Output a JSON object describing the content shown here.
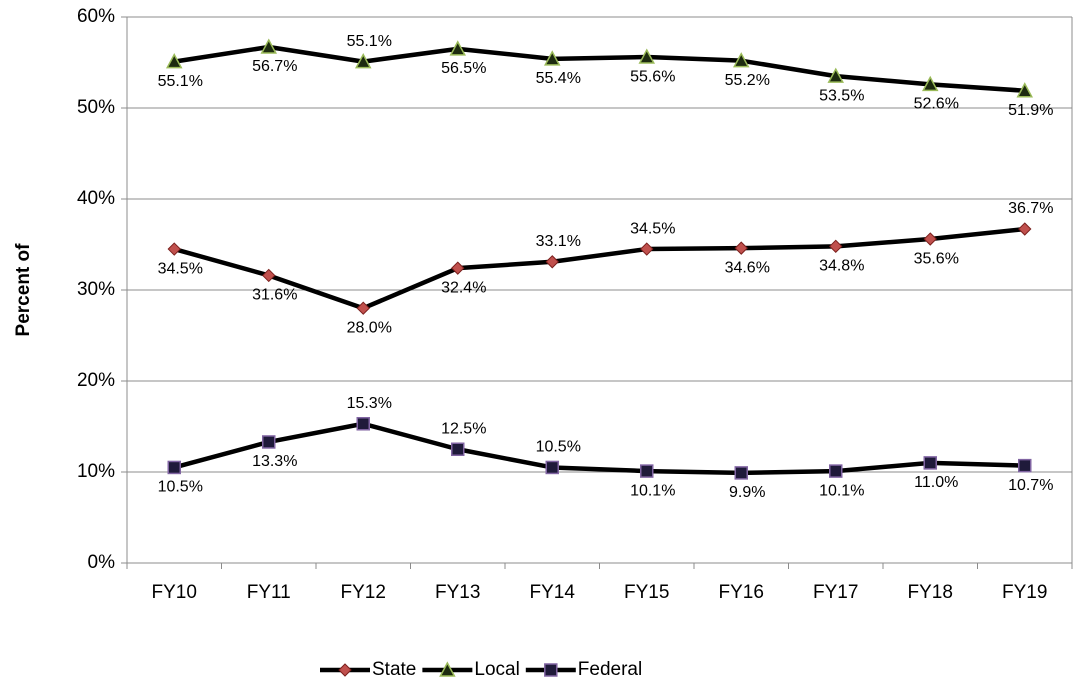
{
  "chart_data": {
    "type": "line",
    "y_label": "Percent of",
    "categories": [
      "FY10",
      "FY11",
      "FY12",
      "FY13",
      "FY14",
      "FY15",
      "FY16",
      "FY17",
      "FY18",
      "FY19"
    ],
    "series": [
      {
        "name": "State",
        "color": "#000000",
        "marker": "diamond",
        "marker_color": "#c0504d",
        "values": [
          34.5,
          31.6,
          28.0,
          32.4,
          33.1,
          34.5,
          34.6,
          34.8,
          35.6,
          36.7
        ],
        "value_labels": [
          "34.5%",
          "31.6%",
          "28.0%",
          "32.4%",
          "33.1%",
          "34.5%",
          "34.6%",
          "34.8%",
          "35.6%",
          "36.7%"
        ]
      },
      {
        "name": "Local",
        "color": "#000000",
        "marker": "triangle",
        "marker_color": "#9bbb59",
        "values": [
          55.1,
          56.7,
          55.1,
          56.5,
          55.4,
          55.6,
          55.2,
          53.5,
          52.6,
          51.9
        ],
        "value_labels": [
          "55.1%",
          "56.7%",
          "55.1%",
          "56.5%",
          "55.4%",
          "55.6%",
          "55.2%",
          "53.5%",
          "52.6%",
          "51.9%"
        ]
      },
      {
        "name": "Federal",
        "color": "#000000",
        "marker": "square",
        "marker_color": "#1f1a3a",
        "values": [
          10.5,
          13.3,
          15.3,
          12.5,
          10.5,
          10.1,
          9.9,
          10.1,
          11.0,
          10.7
        ],
        "value_labels": [
          "10.5%",
          "13.3%",
          "15.3%",
          "12.5%",
          "10.5%",
          "10.1%",
          "9.9%",
          "10.1%",
          "11.0%",
          "10.7%"
        ]
      }
    ],
    "ylim": [
      0,
      60
    ],
    "yticks": [
      {
        "value": 0,
        "label": "0%"
      },
      {
        "value": 10,
        "label": "10%"
      },
      {
        "value": 20,
        "label": "20%"
      },
      {
        "value": 30,
        "label": "30%"
      },
      {
        "value": 40,
        "label": "40%"
      },
      {
        "value": 50,
        "label": "50%"
      },
      {
        "value": 60,
        "label": "60%"
      }
    ],
    "grid": true,
    "legend": "bottom"
  }
}
